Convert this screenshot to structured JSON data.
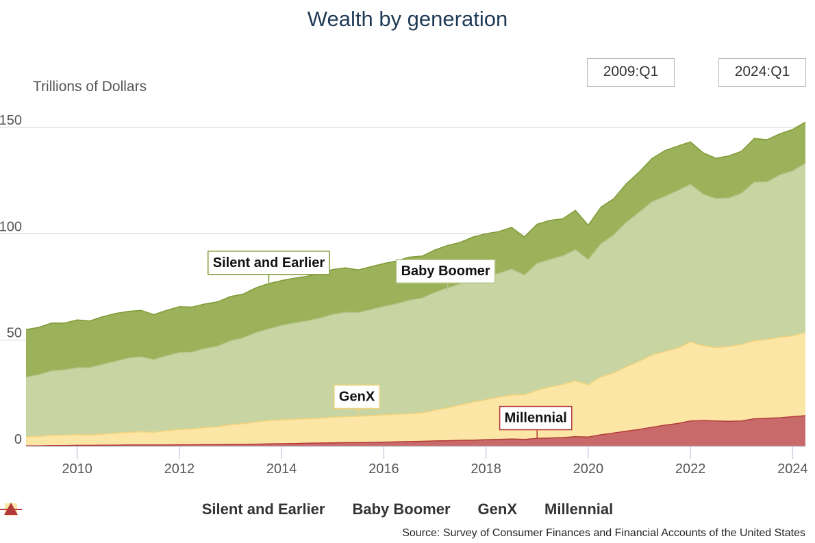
{
  "header": {
    "title": "Wealth by generation"
  },
  "range": {
    "from": "2009:Q1",
    "to": "2024:Q1"
  },
  "source": "Source: Survey of Consumer Finances and Financial Accounts of the United States",
  "colors": {
    "silent": "#9bb25a",
    "boomer": "#c8d5a3",
    "genx": "#fce6a6",
    "millennial": "#c96a6a",
    "silent_line": "#7f9a35",
    "genx_line": "#f3d27a",
    "millennial_line": "#b33a3a"
  },
  "chart_data": {
    "type": "area",
    "stacked": true,
    "ylabel": "Trillions of Dollars",
    "ylim": [
      0,
      160
    ],
    "yticks": [
      0,
      50,
      100,
      150
    ],
    "xlim": [
      2009.0,
      2024.25
    ],
    "xticks": [
      2010,
      2012,
      2014,
      2016,
      2018,
      2020,
      2022,
      2024
    ],
    "grid": true,
    "legend_position": "bottom",
    "x": [
      2009.0,
      2009.25,
      2009.5,
      2009.75,
      2010.0,
      2010.25,
      2010.5,
      2010.75,
      2011.0,
      2011.25,
      2011.5,
      2011.75,
      2012.0,
      2012.25,
      2012.5,
      2012.75,
      2013.0,
      2013.25,
      2013.5,
      2013.75,
      2014.0,
      2014.25,
      2014.5,
      2014.75,
      2015.0,
      2015.25,
      2015.5,
      2015.75,
      2016.0,
      2016.25,
      2016.5,
      2016.75,
      2017.0,
      2017.25,
      2017.5,
      2017.75,
      2018.0,
      2018.25,
      2018.5,
      2018.75,
      2019.0,
      2019.25,
      2019.5,
      2019.75,
      2020.0,
      2020.25,
      2020.5,
      2020.75,
      2021.0,
      2021.25,
      2021.5,
      2021.75,
      2022.0,
      2022.25,
      2022.5,
      2022.75,
      2023.0,
      2023.25,
      2023.5,
      2023.75,
      2024.0,
      2024.25
    ],
    "series": [
      {
        "name": "Millennial",
        "values": [
          0.3,
          0.3,
          0.4,
          0.4,
          0.5,
          0.5,
          0.6,
          0.6,
          0.7,
          0.7,
          0.7,
          0.7,
          0.8,
          0.8,
          0.9,
          0.9,
          1.0,
          1.0,
          1.1,
          1.2,
          1.3,
          1.4,
          1.5,
          1.6,
          1.7,
          1.8,
          1.8,
          1.9,
          2.0,
          2.2,
          2.3,
          2.4,
          2.6,
          2.7,
          2.9,
          3.0,
          3.2,
          3.3,
          3.5,
          3.3,
          3.8,
          4.0,
          4.2,
          4.6,
          4.4,
          5.5,
          6.3,
          7.2,
          8.0,
          9.0,
          10.0,
          10.8,
          12.0,
          12.2,
          12.0,
          11.8,
          12.0,
          13.0,
          13.3,
          13.5,
          14.0,
          14.5
        ]
      },
      {
        "name": "GenX",
        "values": [
          4.2,
          4.4,
          4.8,
          4.9,
          5.0,
          4.8,
          5.2,
          5.6,
          6.0,
          6.2,
          6.0,
          6.7,
          7.2,
          7.4,
          8.0,
          8.4,
          9.2,
          9.7,
          10.4,
          11.0,
          11.2,
          11.4,
          11.5,
          11.7,
          12.0,
          12.3,
          12.4,
          12.6,
          12.8,
          12.9,
          13.1,
          13.4,
          14.4,
          15.5,
          16.6,
          17.9,
          18.8,
          19.8,
          20.7,
          21.0,
          22.6,
          23.9,
          25.0,
          26.2,
          24.6,
          27.2,
          28.3,
          30.3,
          32.1,
          34.0,
          34.7,
          35.4,
          37.1,
          35.2,
          34.5,
          35.1,
          36.0,
          36.7,
          37.0,
          37.8,
          38.0,
          39.0
        ]
      },
      {
        "name": "Baby Boomer",
        "values": [
          28.0,
          29.0,
          30.3,
          30.7,
          31.5,
          31.7,
          32.8,
          33.8,
          34.8,
          35.2,
          34.1,
          35.2,
          36.1,
          36.1,
          37.1,
          37.8,
          39.4,
          40.3,
          42.0,
          43.0,
          44.4,
          45.2,
          46.0,
          47.0,
          48.3,
          48.9,
          48.7,
          49.8,
          51.0,
          51.9,
          53.3,
          53.9,
          55.4,
          56.3,
          56.9,
          57.6,
          58.2,
          58.2,
          59.1,
          56.2,
          59.6,
          60.0,
          60.3,
          61.7,
          58.8,
          62.6,
          64.8,
          67.9,
          70.0,
          72.0,
          72.8,
          74.0,
          74.1,
          71.1,
          70.0,
          69.9,
          71.0,
          74.5,
          74.1,
          76.3,
          77.5,
          79.5
        ]
      },
      {
        "name": "Silent and Earlier",
        "values": [
          22.5,
          22.3,
          22.5,
          22.0,
          22.5,
          22.0,
          22.4,
          22.5,
          22.0,
          21.9,
          21.2,
          21.4,
          21.6,
          21.2,
          21.0,
          20.9,
          20.9,
          20.6,
          21.1,
          21.4,
          21.1,
          21.1,
          21.0,
          21.1,
          21.2,
          21.0,
          20.1,
          20.2,
          20.2,
          20.2,
          20.3,
          19.8,
          20.0,
          20.0,
          19.6,
          20.0,
          19.8,
          19.7,
          19.7,
          18.0,
          18.5,
          18.4,
          17.5,
          18.5,
          16.2,
          17.2,
          17.1,
          18.2,
          19.0,
          20.4,
          21.6,
          21.0,
          20.0,
          19.5,
          19.0,
          19.8,
          19.8,
          20.6,
          19.8,
          19.4,
          19.5,
          19.5
        ]
      }
    ],
    "annotations": [
      {
        "text": "Silent and Earlier",
        "x": 2013.75,
        "y": 77
      },
      {
        "text": "Baby Boomer",
        "x": 2017.25,
        "y": 73
      },
      {
        "text": "GenX",
        "x": 2015.5,
        "y": 14
      },
      {
        "text": "Millennial",
        "x": 2019.0,
        "y": 4
      }
    ]
  },
  "legend": {
    "items": [
      {
        "label": "Silent and Earlier",
        "icon": "circle-marker-icon",
        "key": "silent"
      },
      {
        "label": "Baby Boomer",
        "icon": "diamond-marker-icon",
        "key": "boomer"
      },
      {
        "label": "GenX",
        "icon": "square-marker-icon",
        "key": "genx"
      },
      {
        "label": "Millennial",
        "icon": "triangle-marker-icon",
        "key": "millennial"
      }
    ]
  }
}
